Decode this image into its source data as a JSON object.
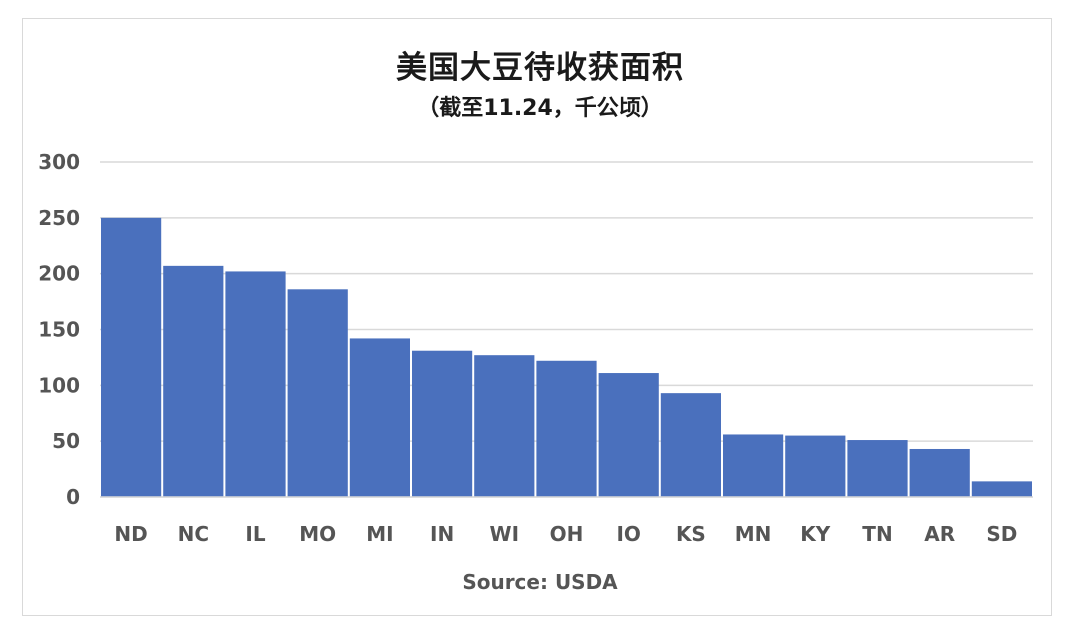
{
  "colors": {
    "bar": "#4a70bd",
    "grid": "#d9d9d9",
    "text": "#555555",
    "title": "#1a1a1a"
  },
  "chart_data": {
    "type": "bar",
    "title": "美国大豆待收获面积",
    "subtitle": "（截至11.24，千公顷）",
    "source": "Source: USDA",
    "categories": [
      "ND",
      "NC",
      "IL",
      "MO",
      "MI",
      "IN",
      "WI",
      "OH",
      "IO",
      "KS",
      "MN",
      "KY",
      "TN",
      "AR",
      "SD"
    ],
    "values": [
      250,
      207,
      202,
      186,
      142,
      131,
      127,
      122,
      111,
      93,
      56,
      55,
      51,
      43,
      14
    ],
    "ylim": [
      0,
      300
    ],
    "yticks": [
      0,
      50,
      100,
      150,
      200,
      250,
      300
    ],
    "grid": true,
    "legend": "none"
  }
}
